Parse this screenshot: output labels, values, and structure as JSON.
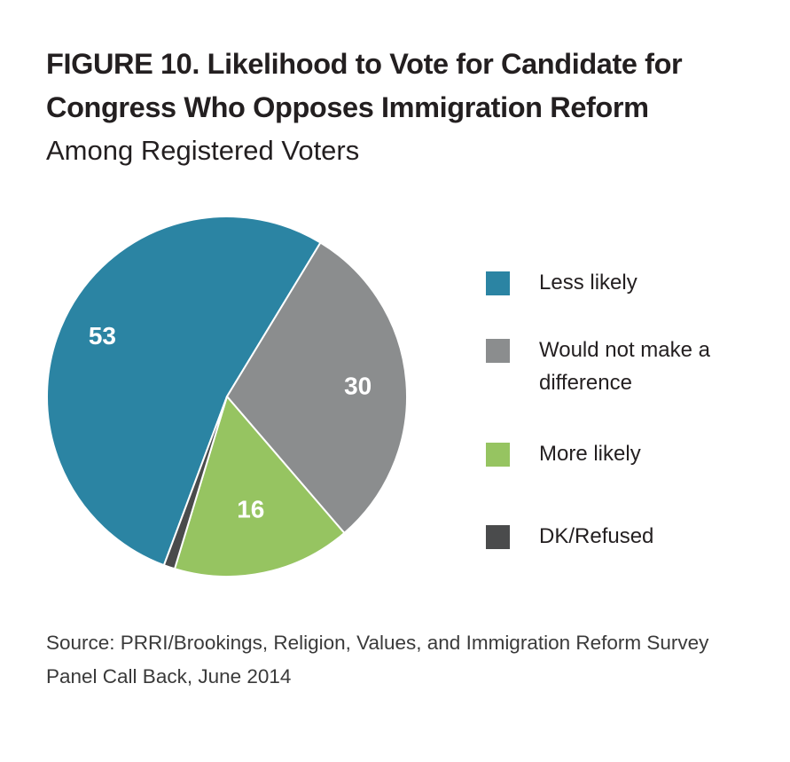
{
  "title": "FIGURE 10. Likelihood to Vote for Candidate for Congress Who Opposes Immigration Reform",
  "subtitle": "Among Registered Voters",
  "source": "Source: PRRI/Brookings, Religion, Values, and Immigration Reform Survey Panel Call Back, June 2014",
  "chart_data": {
    "type": "pie",
    "title": "FIGURE 10. Likelihood to Vote for Candidate for Congress Who Opposes Immigration Reform",
    "subtitle": "Among Registered Voters",
    "legend_position": "right",
    "slices": [
      {
        "name": "Less likely",
        "value": 53,
        "label": "53",
        "color": "#2b84a3"
      },
      {
        "name": "Would not make a difference",
        "value": 30,
        "label": "30",
        "color": "#8b8d8e"
      },
      {
        "name": "More likely",
        "value": 16,
        "label": "16",
        "color": "#96c461"
      },
      {
        "name": "DK/Refused",
        "value": 1,
        "label": "",
        "color": "#4a4b4c"
      }
    ]
  }
}
